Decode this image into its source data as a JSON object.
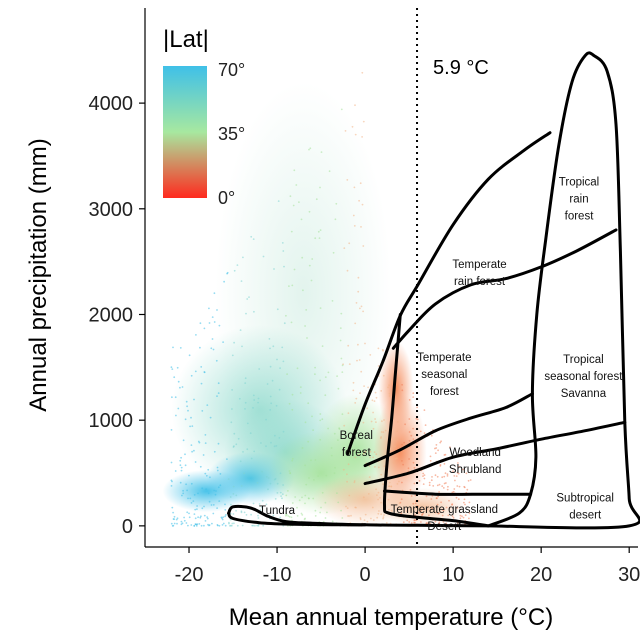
{
  "chart_data": {
    "type": "scatter",
    "xlabel": "Mean annual temperature (°C)",
    "ylabel": "Annual precipitation (mm)",
    "xlim": [
      -25,
      31
    ],
    "ylim": [
      -200,
      4900
    ],
    "xticks": [
      -20,
      -10,
      0,
      10,
      20,
      30
    ],
    "yticks": [
      0,
      1000,
      2000,
      3000,
      4000
    ],
    "xtick_labels": [
      "-20",
      "-10",
      "0",
      "10",
      "20",
      "30"
    ],
    "ytick_labels": [
      "0",
      "1000",
      "2000",
      "3000",
      "4000"
    ],
    "grid": false,
    "color_legend": {
      "title": "|Lat|",
      "position": "top-left",
      "labels": [
        "70°",
        "35°",
        "0°"
      ],
      "values": [
        70,
        35,
        0
      ],
      "colors": [
        "#3fc0e8",
        "#a7e8a0",
        "#ff2a1e"
      ]
    },
    "threshold_line": {
      "x": 5.9,
      "label": "5.9 °C",
      "style": "dotted"
    },
    "biomes": [
      {
        "name": "Tundra",
        "lines": [
          "Tundra"
        ],
        "x": -10,
        "y": 110
      },
      {
        "name": "Boreal forest",
        "lines": [
          "Boreal",
          "forest"
        ],
        "x": -1,
        "y": 820
      },
      {
        "name": "Temperate rain forest",
        "lines": [
          "Temperate",
          "rain forest"
        ],
        "x": 13,
        "y": 2440
      },
      {
        "name": "Temperate seasonal forest",
        "lines": [
          "Temperate",
          "seasonal",
          "forest"
        ],
        "x": 9,
        "y": 1560
      },
      {
        "name": "Woodland Shrubland",
        "lines": [
          "Woodland",
          "Shrubland"
        ],
        "x": 12.5,
        "y": 660
      },
      {
        "name": "Temperate grassland Desert",
        "lines": [
          "Temperate grassland",
          "Desert"
        ],
        "x": 9,
        "y": 120
      },
      {
        "name": "Tropical rain forest",
        "lines": [
          "Tropical",
          "rain",
          "forest"
        ],
        "x": 24.3,
        "y": 3220
      },
      {
        "name": "Tropical seasonal forest Savanna",
        "lines": [
          "Tropical",
          "seasonal forest",
          "Savanna"
        ],
        "x": 24.8,
        "y": 1540
      },
      {
        "name": "Subtropical desert",
        "lines": [
          "Subtropical",
          "desert"
        ],
        "x": 25,
        "y": 230
      }
    ],
    "biome_boundaries": {
      "outer": [
        [
          14,
          0
        ],
        [
          30,
          0
        ],
        [
          30,
          260
        ],
        [
          29.5,
          980
        ],
        [
          29,
          2600
        ],
        [
          28.5,
          3800
        ],
        [
          27.5,
          4300
        ],
        [
          26,
          4450
        ],
        [
          25,
          4450
        ],
        [
          23.5,
          4200
        ],
        [
          22,
          3600
        ],
        [
          20.5,
          2700
        ],
        [
          19.5,
          2000
        ],
        [
          19,
          1250
        ],
        [
          19.4,
          650
        ],
        [
          18.8,
          300
        ],
        [
          17.5,
          120
        ],
        [
          14,
          0
        ]
      ],
      "lines": [
        [
          [
            -15.5,
            120
          ],
          [
            -15,
            180
          ],
          [
            -13,
            170
          ],
          [
            -11,
            90
          ],
          [
            -9,
            40
          ],
          [
            -6,
            25
          ],
          [
            0,
            10
          ],
          [
            6,
            5
          ],
          [
            14,
            0
          ]
        ],
        [
          [
            -15.5,
            120
          ],
          [
            -15,
            70
          ],
          [
            -12,
            30
          ],
          [
            -8,
            15
          ],
          [
            -3,
            10
          ],
          [
            0,
            10
          ]
        ],
        [
          [
            -2,
            680
          ],
          [
            0,
            1150
          ],
          [
            2,
            1550
          ],
          [
            4,
            1990
          ],
          [
            6,
            2280
          ],
          [
            10,
            2850
          ],
          [
            14,
            3280
          ],
          [
            18,
            3550
          ],
          [
            21,
            3720
          ]
        ],
        [
          [
            4,
            2000
          ],
          [
            3.5,
            1500
          ],
          [
            3,
            1000
          ],
          [
            2.5,
            600
          ],
          [
            2.2,
            200
          ],
          [
            2.7,
            120
          ],
          [
            6,
            80
          ],
          [
            10,
            50
          ],
          [
            14,
            0
          ]
        ],
        [
          [
            3.2,
            1680
          ],
          [
            5,
            1850
          ],
          [
            8,
            2100
          ],
          [
            12,
            2280
          ],
          [
            16,
            2340
          ],
          [
            20,
            2450
          ],
          [
            24,
            2600
          ],
          [
            28.5,
            2800
          ]
        ],
        [
          [
            0,
            570
          ],
          [
            4,
            720
          ],
          [
            8,
            900
          ],
          [
            12,
            1020
          ],
          [
            16,
            1120
          ],
          [
            19,
            1250
          ]
        ],
        [
          [
            0,
            400
          ],
          [
            5,
            500
          ],
          [
            10,
            650
          ],
          [
            15,
            730
          ],
          [
            20,
            820
          ],
          [
            25,
            900
          ],
          [
            29.5,
            980
          ]
        ],
        [
          [
            2.2,
            330
          ],
          [
            8,
            300
          ],
          [
            14,
            300
          ],
          [
            18.8,
            300
          ]
        ]
      ]
    }
  }
}
